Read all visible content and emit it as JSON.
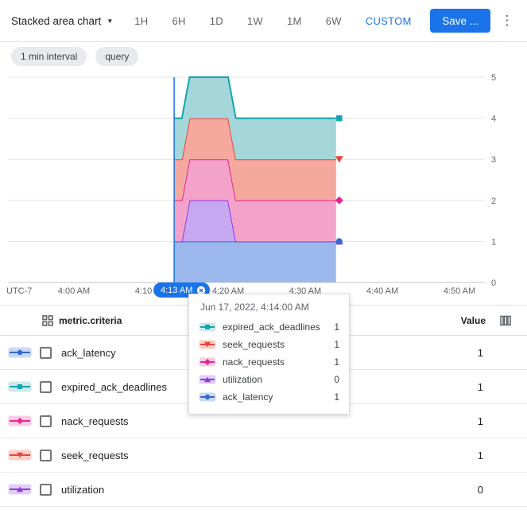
{
  "accent_color": "#1a73e8",
  "toolbar": {
    "chart_type_label": "Stacked area chart",
    "time_ranges": [
      "1H",
      "6H",
      "1D",
      "1W",
      "1M",
      "6W"
    ],
    "custom_label": "CUSTOM",
    "save_label": "Save ...",
    "more_label": "⋮"
  },
  "chips": {
    "interval": "1 min interval",
    "query": "query"
  },
  "axis_pill": {
    "label": "4:13 AM"
  },
  "tooltip": {
    "title": "Jun 17, 2022, 4:14:00 AM",
    "rows": [
      {
        "name": "expired_ack_deadlines",
        "value": "1"
      },
      {
        "name": "seek_requests",
        "value": "1"
      },
      {
        "name": "nack_requests",
        "value": "1"
      },
      {
        "name": "utilization",
        "value": "0"
      },
      {
        "name": "ack_latency",
        "value": "1"
      }
    ]
  },
  "legend_table": {
    "metric_header": "metric.criteria",
    "value_header": "Value",
    "rows": [
      {
        "name": "ack_latency",
        "value": "1"
      },
      {
        "name": "expired_ack_deadlines",
        "value": "1"
      },
      {
        "name": "nack_requests",
        "value": "1"
      },
      {
        "name": "seek_requests",
        "value": "1"
      },
      {
        "name": "utilization",
        "value": "0"
      }
    ]
  },
  "chart_data": {
    "type": "area",
    "stacked": true,
    "title": "",
    "xlabel": "",
    "ylabel": "",
    "x_times": [
      "4:13",
      "4:14",
      "4:15",
      "4:16",
      "4:17",
      "4:18",
      "4:19",
      "4:20",
      "4:21",
      "4:22",
      "4:23",
      "4:24",
      "4:25",
      "4:26",
      "4:27",
      "4:28",
      "4:29",
      "4:30",
      "4:31",
      "4:32",
      "4:33",
      "4:34"
    ],
    "series": [
      {
        "name": "ack_latency",
        "marker": "circle",
        "stroke": "#3367d6",
        "fill": "#9cb8ec",
        "values": [
          1,
          1,
          1,
          1,
          1,
          1,
          1,
          1,
          1,
          1,
          1,
          1,
          1,
          1,
          1,
          1,
          1,
          1,
          1,
          1,
          1,
          1
        ]
      },
      {
        "name": "utilization",
        "marker": "triangle-up",
        "stroke": "#9334e6",
        "fill": "#c6a8f0",
        "values": [
          0,
          0,
          1,
          1,
          1,
          1,
          1,
          1,
          0,
          0,
          0,
          0,
          0,
          0,
          0,
          0,
          0,
          0,
          0,
          0,
          0,
          0
        ]
      },
      {
        "name": "nack_requests",
        "marker": "diamond",
        "stroke": "#e52592",
        "fill": "#f3a3ca",
        "values": [
          1,
          1,
          1,
          1,
          1,
          1,
          1,
          1,
          1,
          1,
          1,
          1,
          1,
          1,
          1,
          1,
          1,
          1,
          1,
          1,
          1,
          1
        ]
      },
      {
        "name": "seek_requests",
        "marker": "triangle-down",
        "stroke": "#e8453c",
        "fill": "#f5a89e",
        "values": [
          1,
          1,
          1,
          1,
          1,
          1,
          1,
          1,
          1,
          1,
          1,
          1,
          1,
          1,
          1,
          1,
          1,
          1,
          1,
          1,
          1,
          1
        ]
      },
      {
        "name": "expired_ack_deadlines",
        "marker": "square",
        "stroke": "#12a4af",
        "fill": "#a5d7da",
        "values": [
          1,
          1,
          1,
          1,
          1,
          1,
          1,
          1,
          1,
          1,
          1,
          1,
          1,
          1,
          1,
          1,
          1,
          1,
          1,
          1,
          1,
          1
        ]
      }
    ],
    "x_axis": {
      "utc_label": "UTC-7",
      "ticks": [
        {
          "m": 0,
          "label": "4:00 AM"
        },
        {
          "m": 10,
          "label": "4:10 AM"
        },
        {
          "m": 20,
          "label": "4:20 AM"
        },
        {
          "m": 30,
          "label": "4:30 AM"
        },
        {
          "m": 40,
          "label": "4:40 AM"
        },
        {
          "m": 50,
          "label": "4:50 AM"
        }
      ]
    },
    "y_axis": {
      "ticks": [
        0,
        1,
        2,
        3,
        4,
        5
      ],
      "range": [
        0,
        5
      ],
      "grid": true
    },
    "hover_minute": 13,
    "legend_position": "bottom-table"
  }
}
